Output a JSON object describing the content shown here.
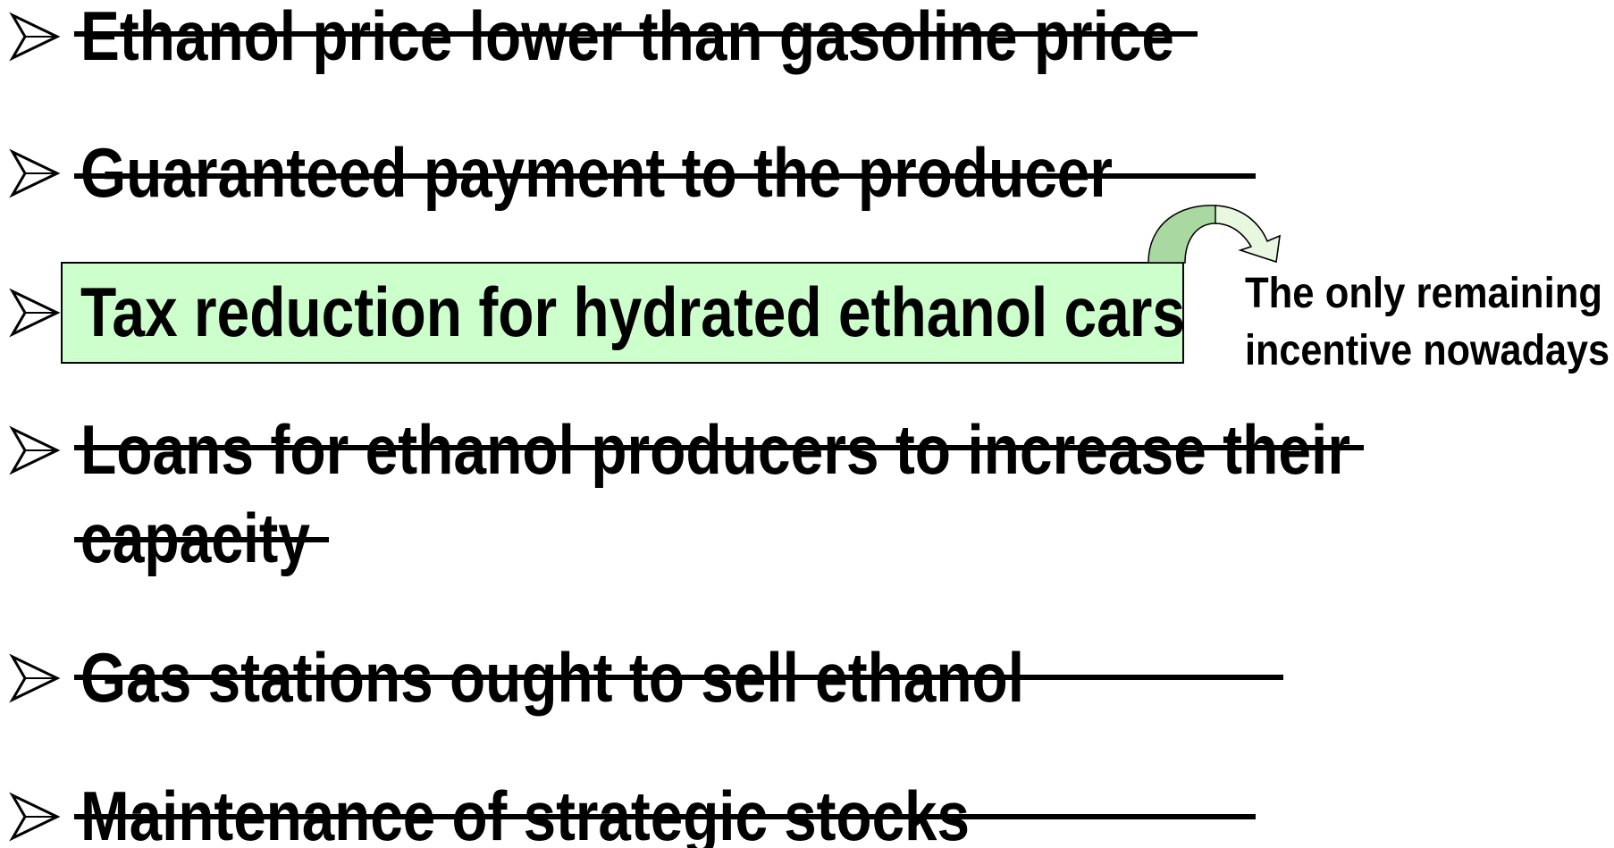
{
  "slide": {
    "items": [
      {
        "lines": [
          "Ethanol price lower than gasoline price"
        ],
        "struck": true
      },
      {
        "lines": [
          "Guaranteed payment to the producer"
        ],
        "struck": true
      },
      {
        "lines": [
          "Tax reduction for hydrated ethanol cars"
        ],
        "struck": false
      },
      {
        "lines": [
          "Loans for ethanol producers to increase their",
          "capacity"
        ],
        "struck": true
      },
      {
        "lines": [
          "Gas stations ought to sell ethanol"
        ],
        "struck": true
      },
      {
        "lines": [
          "Maintenance of strategic stocks"
        ],
        "struck": true
      }
    ],
    "annotation": {
      "lines": [
        "The only remaining",
        "incentive nowadays"
      ]
    }
  }
}
